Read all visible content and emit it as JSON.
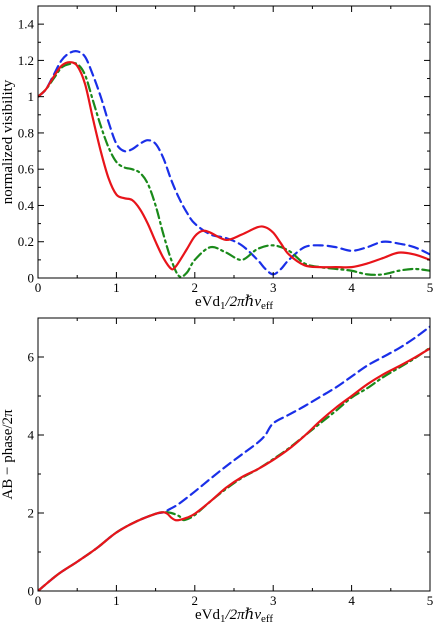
{
  "chart_data": [
    {
      "type": "line",
      "xlabel": "eVd₁/2πℏvₑₒₒ",
      "ylabel": "normalized visibility",
      "xlim": [
        0,
        5
      ],
      "ylim": [
        0,
        1.5
      ],
      "xticks": [
        0,
        1,
        2,
        3,
        4,
        5
      ],
      "yticks": [
        0,
        0.2,
        0.4,
        0.6,
        0.8,
        1,
        1.2,
        1.4
      ],
      "xtick_labels": [
        "0",
        "1",
        "2",
        "3",
        "4",
        "5"
      ],
      "ytick_labels": [
        "0",
        "0.2",
        "0.4",
        "0.6",
        "0.8",
        "1",
        "1.2",
        "1.4"
      ],
      "grid": false,
      "series": [
        {
          "color": "#1a2fe8",
          "dash": "dashed",
          "x": [
            0,
            0.1,
            0.2,
            0.3,
            0.4,
            0.5,
            0.6,
            0.7,
            0.8,
            0.9,
            1.0,
            1.1,
            1.2,
            1.3,
            1.4,
            1.5,
            1.6,
            1.7,
            1.8,
            1.9,
            2.0,
            2.2,
            2.4,
            2.6,
            2.8,
            2.9,
            3.0,
            3.1,
            3.2,
            3.4,
            3.6,
            3.8,
            4.0,
            4.2,
            4.4,
            4.6,
            4.8,
            5.0
          ],
          "y": [
            1.0,
            1.04,
            1.12,
            1.2,
            1.24,
            1.25,
            1.22,
            1.12,
            1.0,
            0.86,
            0.74,
            0.7,
            0.71,
            0.74,
            0.76,
            0.74,
            0.66,
            0.54,
            0.44,
            0.36,
            0.3,
            0.24,
            0.22,
            0.18,
            0.1,
            0.05,
            0.02,
            0.05,
            0.1,
            0.17,
            0.18,
            0.17,
            0.15,
            0.17,
            0.2,
            0.19,
            0.17,
            0.13
          ]
        },
        {
          "color": "#1a8a1a",
          "dash": "dashdot",
          "x": [
            0,
            0.1,
            0.2,
            0.3,
            0.4,
            0.5,
            0.6,
            0.7,
            0.8,
            0.9,
            1.0,
            1.1,
            1.2,
            1.3,
            1.4,
            1.5,
            1.6,
            1.7,
            1.8,
            1.9,
            2.0,
            2.2,
            2.4,
            2.6,
            2.8,
            3.0,
            3.2,
            3.4,
            3.6,
            3.8,
            4.0,
            4.2,
            4.4,
            4.6,
            4.8,
            5.0
          ],
          "y": [
            1.0,
            1.04,
            1.1,
            1.16,
            1.18,
            1.18,
            1.12,
            0.98,
            0.84,
            0.72,
            0.64,
            0.61,
            0.6,
            0.58,
            0.52,
            0.4,
            0.24,
            0.1,
            0.01,
            0.03,
            0.1,
            0.17,
            0.14,
            0.1,
            0.16,
            0.18,
            0.15,
            0.08,
            0.06,
            0.05,
            0.04,
            0.02,
            0.02,
            0.04,
            0.05,
            0.04
          ]
        },
        {
          "color": "#e8141a",
          "dash": "solid",
          "x": [
            0,
            0.1,
            0.2,
            0.3,
            0.4,
            0.5,
            0.6,
            0.7,
            0.8,
            0.9,
            1.0,
            1.1,
            1.2,
            1.3,
            1.4,
            1.5,
            1.6,
            1.7,
            1.75,
            1.8,
            1.9,
            2.0,
            2.1,
            2.2,
            2.4,
            2.6,
            2.8,
            2.9,
            3.0,
            3.1,
            3.2,
            3.4,
            3.6,
            3.8,
            4.0,
            4.2,
            4.4,
            4.6,
            4.8,
            5.0
          ],
          "y": [
            1.0,
            1.04,
            1.11,
            1.17,
            1.19,
            1.17,
            1.07,
            0.88,
            0.7,
            0.55,
            0.46,
            0.44,
            0.43,
            0.38,
            0.3,
            0.2,
            0.11,
            0.05,
            0.06,
            0.09,
            0.16,
            0.23,
            0.26,
            0.25,
            0.21,
            0.24,
            0.28,
            0.28,
            0.25,
            0.19,
            0.13,
            0.07,
            0.06,
            0.06,
            0.06,
            0.08,
            0.11,
            0.14,
            0.13,
            0.1
          ]
        }
      ]
    },
    {
      "type": "line",
      "xlabel": "eVd₁/2πℏvₑₒₒ",
      "ylabel": "AB − phase/2π",
      "xlim": [
        0,
        5
      ],
      "ylim": [
        0,
        7
      ],
      "xticks": [
        0,
        1,
        2,
        3,
        4,
        5
      ],
      "yticks": [
        0,
        2,
        4,
        6
      ],
      "xtick_labels": [
        "0",
        "1",
        "2",
        "3",
        "4",
        "5"
      ],
      "ytick_labels": [
        "0",
        "2",
        "4",
        "6"
      ],
      "grid": false,
      "series": [
        {
          "color": "#1a2fe8",
          "dash": "dashed",
          "x": [
            0,
            0.25,
            0.5,
            0.75,
            1.0,
            1.25,
            1.5,
            1.6,
            1.7,
            1.8,
            2.0,
            2.2,
            2.4,
            2.6,
            2.8,
            2.9,
            3.0,
            3.2,
            3.4,
            3.6,
            3.8,
            4.0,
            4.2,
            4.4,
            4.6,
            4.8,
            5.0
          ],
          "y": [
            0,
            0.42,
            0.75,
            1.1,
            1.5,
            1.78,
            1.98,
            2.02,
            2.12,
            2.24,
            2.55,
            2.88,
            3.2,
            3.5,
            3.8,
            4.0,
            4.3,
            4.52,
            4.74,
            4.98,
            5.22,
            5.5,
            5.78,
            6.0,
            6.22,
            6.48,
            6.78
          ]
        },
        {
          "color": "#1a8a1a",
          "dash": "dashdot",
          "x": [
            0,
            0.25,
            0.5,
            0.75,
            1.0,
            1.25,
            1.5,
            1.6,
            1.7,
            1.8,
            1.85,
            1.9,
            2.0,
            2.2,
            2.4,
            2.6,
            2.8,
            3.0,
            3.2,
            3.4,
            3.6,
            3.8,
            4.0,
            4.2,
            4.4,
            4.6,
            4.8,
            5.0
          ],
          "y": [
            0,
            0.42,
            0.75,
            1.1,
            1.5,
            1.78,
            1.98,
            2.02,
            2.0,
            1.92,
            1.82,
            1.84,
            1.95,
            2.3,
            2.62,
            2.9,
            3.12,
            3.38,
            3.66,
            3.98,
            4.3,
            4.62,
            4.96,
            5.2,
            5.48,
            5.72,
            5.96,
            6.24
          ]
        },
        {
          "color": "#e8141a",
          "dash": "solid",
          "x": [
            0,
            0.25,
            0.5,
            0.75,
            1.0,
            1.25,
            1.5,
            1.6,
            1.65,
            1.7,
            1.75,
            1.8,
            1.9,
            2.0,
            2.2,
            2.4,
            2.6,
            2.8,
            3.0,
            3.2,
            3.4,
            3.6,
            3.8,
            4.0,
            4.2,
            4.4,
            4.6,
            4.8,
            5.0
          ],
          "y": [
            0,
            0.42,
            0.75,
            1.1,
            1.5,
            1.78,
            1.98,
            2.02,
            1.98,
            1.88,
            1.82,
            1.82,
            1.88,
            1.98,
            2.3,
            2.65,
            2.92,
            3.12,
            3.36,
            3.64,
            3.98,
            4.36,
            4.7,
            5.0,
            5.3,
            5.55,
            5.76,
            5.98,
            6.22
          ]
        }
      ]
    }
  ]
}
